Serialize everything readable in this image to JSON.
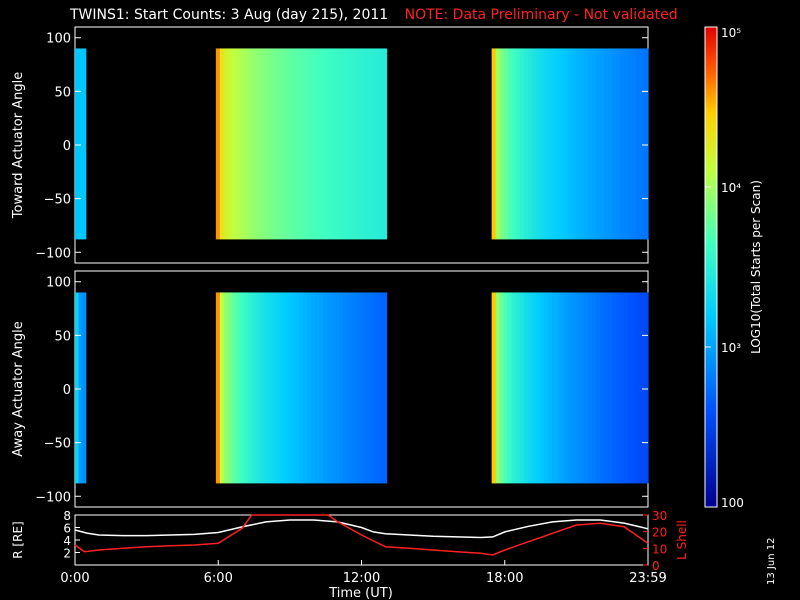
{
  "header": {
    "title": "TWINS1: Start Counts:  3 Aug (day 215), 2011",
    "note": "NOTE: Data Preliminary - Not validated"
  },
  "date_stamp": "13 Jun 12",
  "colors": {
    "background": "#000000",
    "axis": "#ffffff",
    "note": "#ff2020",
    "l_shell_line": "#ff2020",
    "r_line": "#ffffff"
  },
  "chart_data": [
    {
      "type": "heatmap",
      "panel": "top",
      "title": "",
      "xlabel": "",
      "ylabel": "Toward Actuator Angle",
      "xlim": [
        0,
        24
      ],
      "ylim": [
        -110,
        110
      ],
      "yticks": [
        -100,
        -50,
        0,
        50,
        100
      ],
      "data_ylim": [
        -88,
        90
      ],
      "colorscale": "log10, 100 to 100000, rainbow (blue-cyan-green-yellow-red)",
      "blocks": [
        {
          "x_start": 0.0,
          "x_end": 0.45,
          "counts_start": 1500,
          "counts_end": 1500
        },
        {
          "x_start": 5.9,
          "x_end": 13.05,
          "counts_start": 40000,
          "counts_end": 3000
        },
        {
          "x_start": 17.45,
          "x_end": 24.0,
          "counts_start": 30000,
          "counts_end": 600
        }
      ]
    },
    {
      "type": "heatmap",
      "panel": "middle",
      "title": "",
      "xlabel": "",
      "ylabel": "Away Actuator Angle",
      "xlim": [
        0,
        24
      ],
      "ylim": [
        -110,
        110
      ],
      "yticks": [
        -100,
        -50,
        0,
        50,
        100
      ],
      "data_ylim": [
        -88,
        90
      ],
      "colorscale": "log10, 100 to 100000, rainbow (blue-cyan-green-yellow-red)",
      "blocks": [
        {
          "x_start": 0.0,
          "x_end": 0.45,
          "counts_start": 1800,
          "counts_end": 800
        },
        {
          "x_start": 5.9,
          "x_end": 13.05,
          "counts_start": 40000,
          "counts_end": 500
        },
        {
          "x_start": 17.45,
          "x_end": 24.0,
          "counts_start": 30000,
          "counts_end": 350
        }
      ]
    },
    {
      "type": "line",
      "panel": "orbit",
      "xlabel": "Time (UT)",
      "xlim": [
        0,
        24
      ],
      "xticks": [
        "0:00",
        "6:00",
        "12:00",
        "18:00",
        "23:59"
      ],
      "ylabel": "R [RE]",
      "ylim": [
        0,
        8
      ],
      "yticks": [
        2,
        4,
        6,
        8
      ],
      "y2label": "L Shell",
      "y2lim": [
        0,
        30
      ],
      "y2ticks": [
        0,
        10,
        20,
        30
      ],
      "series": [
        {
          "name": "R",
          "axis": "left",
          "x": [
            0,
            0.5,
            1,
            2,
            3,
            4,
            5,
            6,
            7,
            8,
            9,
            10,
            11,
            12,
            12.5,
            13,
            14,
            15,
            16,
            17,
            17.5,
            18,
            19,
            20,
            21,
            22,
            23,
            24
          ],
          "values": [
            5.6,
            5.1,
            4.8,
            4.7,
            4.7,
            4.8,
            4.9,
            5.2,
            6.1,
            6.9,
            7.2,
            7.2,
            6.9,
            6.0,
            5.3,
            5.0,
            4.8,
            4.6,
            4.5,
            4.4,
            4.5,
            5.3,
            6.2,
            6.9,
            7.2,
            7.2,
            6.7,
            5.8
          ]
        },
        {
          "name": "L Shell",
          "axis": "right",
          "x": [
            0,
            0.4,
            1,
            2,
            3,
            4,
            5,
            6,
            7,
            7.4,
            10.6,
            11,
            12,
            13,
            14,
            15,
            16,
            17,
            17.5,
            18,
            19,
            20,
            21,
            22,
            23,
            24
          ],
          "values": [
            12,
            8,
            9,
            10,
            11,
            11.5,
            12,
            13,
            22,
            30,
            30,
            26,
            18,
            11,
            10,
            9,
            8,
            7,
            6,
            9,
            14,
            19,
            24,
            25,
            23,
            13
          ]
        }
      ]
    },
    {
      "type": "colorbar",
      "label": "LOG10(Total Starts per Scan)",
      "scale": "log",
      "range": [
        100,
        100000
      ],
      "tick_labels": [
        "100",
        "10³",
        "10⁴",
        "10⁵"
      ]
    }
  ]
}
